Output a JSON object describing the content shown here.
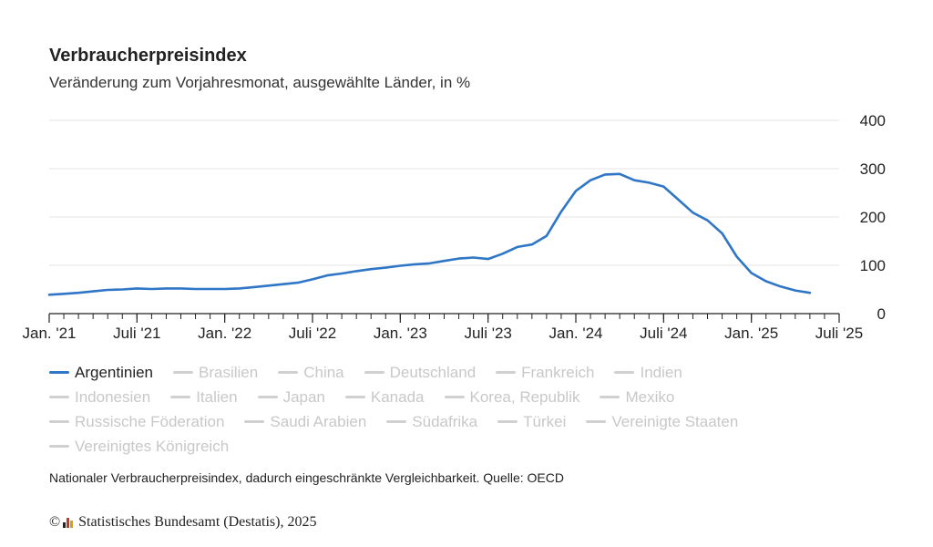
{
  "title": "Verbraucherpreisindex",
  "subtitle": "Veränderung zum Vorjahresmonat, ausgewählte Länder, in %",
  "note": "Nationaler Verbraucherpreisindex, dadurch eingeschränkte Vergleichbarkeit. Quelle: OECD",
  "footer": {
    "copyright": "©",
    "text": "Statistisches Bundesamt (Destatis), 2025"
  },
  "colors": {
    "active_series": "#2f76c6",
    "inactive_series": "#d0d0d0",
    "grid": "#e6e6e6",
    "axis": "#222222"
  },
  "chart_data": {
    "type": "line",
    "title": "Verbraucherpreisindex",
    "subtitle": "Veränderung zum Vorjahresmonat, ausgewählte Länder, in %",
    "xlabel": "",
    "ylabel": "",
    "ylim": [
      0,
      400
    ],
    "yticks": [
      0,
      100,
      200,
      300,
      400
    ],
    "y_axis_position": "right",
    "grid": true,
    "legend_position": "bottom",
    "x_ticks": [
      {
        "label": "Jan. '21",
        "date": "2021-01"
      },
      {
        "label": "Juli '21",
        "date": "2021-07"
      },
      {
        "label": "Jan. '22",
        "date": "2022-01"
      },
      {
        "label": "Juli '22",
        "date": "2022-07"
      },
      {
        "label": "Jan. '23",
        "date": "2023-01"
      },
      {
        "label": "Juli '23",
        "date": "2023-07"
      },
      {
        "label": "Jan. '24",
        "date": "2024-01"
      },
      {
        "label": "Juli '24",
        "date": "2024-07"
      },
      {
        "label": "Jan. '25",
        "date": "2025-01"
      },
      {
        "label": "Juli '25",
        "date": "2025-07"
      }
    ],
    "x_range": [
      "2021-01",
      "2025-07"
    ],
    "series": [
      {
        "name": "Argentinien",
        "active": true,
        "points": [
          [
            "2021-01",
            39
          ],
          [
            "2021-02",
            41
          ],
          [
            "2021-03",
            43
          ],
          [
            "2021-04",
            46
          ],
          [
            "2021-05",
            49
          ],
          [
            "2021-06",
            50
          ],
          [
            "2021-07",
            52
          ],
          [
            "2021-08",
            51
          ],
          [
            "2021-09",
            52
          ],
          [
            "2021-10",
            52
          ],
          [
            "2021-11",
            51
          ],
          [
            "2021-12",
            51
          ],
          [
            "2022-01",
            51
          ],
          [
            "2022-02",
            52
          ],
          [
            "2022-03",
            55
          ],
          [
            "2022-04",
            58
          ],
          [
            "2022-05",
            61
          ],
          [
            "2022-06",
            64
          ],
          [
            "2022-07",
            71
          ],
          [
            "2022-08",
            79
          ],
          [
            "2022-09",
            83
          ],
          [
            "2022-10",
            88
          ],
          [
            "2022-11",
            92
          ],
          [
            "2022-12",
            95
          ],
          [
            "2023-01",
            99
          ],
          [
            "2023-02",
            102
          ],
          [
            "2023-03",
            104
          ],
          [
            "2023-04",
            109
          ],
          [
            "2023-05",
            114
          ],
          [
            "2023-06",
            116
          ],
          [
            "2023-07",
            113
          ],
          [
            "2023-08",
            124
          ],
          [
            "2023-09",
            138
          ],
          [
            "2023-10",
            143
          ],
          [
            "2023-11",
            161
          ],
          [
            "2023-12",
            211
          ],
          [
            "2024-01",
            254
          ],
          [
            "2024-02",
            276
          ],
          [
            "2024-03",
            288
          ],
          [
            "2024-04",
            289
          ],
          [
            "2024-05",
            276
          ],
          [
            "2024-06",
            271
          ],
          [
            "2024-07",
            263
          ],
          [
            "2024-08",
            236
          ],
          [
            "2024-09",
            209
          ],
          [
            "2024-10",
            193
          ],
          [
            "2024-11",
            166
          ],
          [
            "2024-12",
            118
          ],
          [
            "2025-01",
            84
          ],
          [
            "2025-02",
            67
          ],
          [
            "2025-03",
            56
          ],
          [
            "2025-04",
            48
          ],
          [
            "2025-05",
            43
          ]
        ]
      },
      {
        "name": "Brasilien",
        "active": false
      },
      {
        "name": "China",
        "active": false
      },
      {
        "name": "Deutschland",
        "active": false
      },
      {
        "name": "Frankreich",
        "active": false
      },
      {
        "name": "Indien",
        "active": false
      },
      {
        "name": "Indonesien",
        "active": false
      },
      {
        "name": "Italien",
        "active": false
      },
      {
        "name": "Japan",
        "active": false
      },
      {
        "name": "Kanada",
        "active": false
      },
      {
        "name": "Korea, Republik",
        "active": false
      },
      {
        "name": "Mexiko",
        "active": false
      },
      {
        "name": "Russische Föderation",
        "active": false
      },
      {
        "name": "Saudi Arabien",
        "active": false
      },
      {
        "name": "Südafrika",
        "active": false
      },
      {
        "name": "Türkei",
        "active": false
      },
      {
        "name": "Vereinigte Staaten",
        "active": false
      },
      {
        "name": "Vereinigtes Königreich",
        "active": false
      }
    ]
  },
  "legend_rows": [
    [
      0,
      1,
      2,
      3,
      4,
      5
    ],
    [
      6,
      7,
      8,
      9,
      10,
      11
    ],
    [
      12,
      13,
      14,
      15,
      16
    ],
    [
      17
    ]
  ]
}
